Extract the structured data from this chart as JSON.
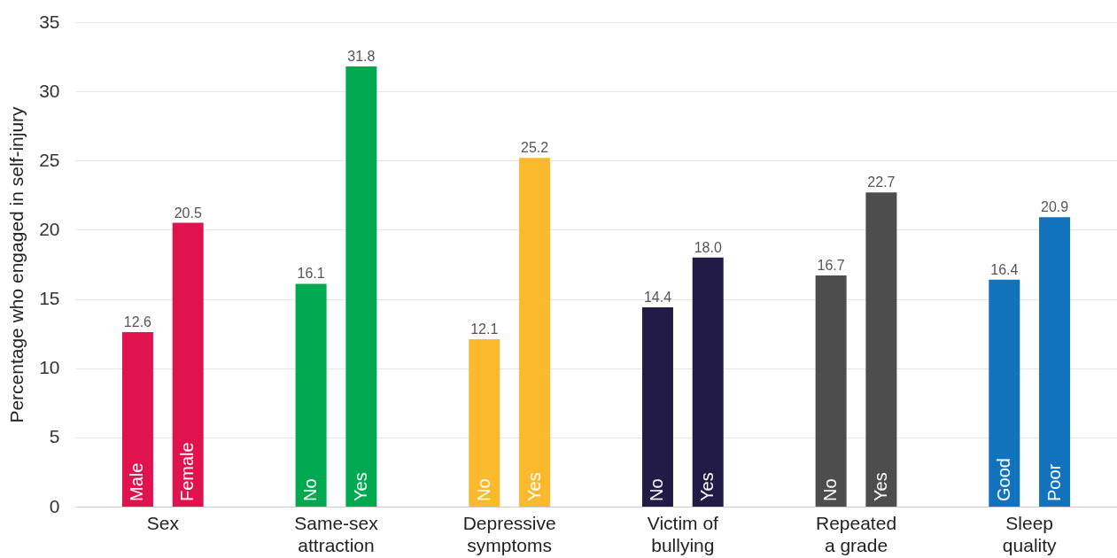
{
  "chart_data": {
    "type": "bar",
    "ylabel": "Percentage who engaged in self-injury",
    "categories": [
      "Male",
      "Female",
      "No",
      "Yes",
      "No",
      "Yes",
      "No",
      "Yes",
      "No",
      "Yes",
      "Good",
      "Poor"
    ],
    "values": [
      12.6,
      20.5,
      16.1,
      31.8,
      12.1,
      25.2,
      14.4,
      18.0,
      16.7,
      22.7,
      16.4,
      20.9
    ],
    "colors": [
      "#e0134f",
      "#e0134f",
      "#00a84f",
      "#00a84f",
      "#fbba2d",
      "#fbba2d",
      "#211b45",
      "#211b45",
      "#4d4d4d",
      "#4d4d4d",
      "#1173bb",
      "#1173bb"
    ],
    "annotations": [
      "Sex",
      "Same-sex attraction",
      "Depressive symptoms",
      "Victim of bullying",
      "Repeated a grade",
      "Sleep quality"
    ],
    "value_labels": [
      "12.6",
      "20.5",
      "16.1",
      "31.8",
      "12.1",
      "25.2",
      "14.4",
      "18.0",
      "16.7",
      "22.7",
      "16.4",
      "20.9"
    ],
    "ylim": [
      0,
      35
    ],
    "yticks": [
      0,
      5,
      10,
      15,
      20,
      25,
      30,
      35
    ],
    "grid": "y"
  }
}
